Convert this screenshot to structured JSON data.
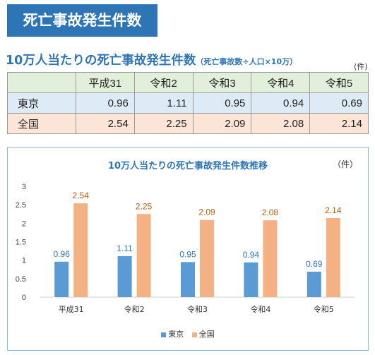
{
  "banner": "死亡事故発生件数",
  "subheading": "10万人当たりの死亡事故発生件数",
  "formula": "（死亡事故数÷人口×10万）",
  "table_unit": "(件)",
  "table": {
    "columns": [
      "平成31",
      "令和2",
      "令和3",
      "令和4",
      "令和5"
    ],
    "rows": [
      {
        "label": "東京",
        "values": [
          "0.96",
          "1.11",
          "0.95",
          "0.94",
          "0.69"
        ]
      },
      {
        "label": "全国",
        "values": [
          "2.54",
          "2.25",
          "2.09",
          "2.08",
          "2.14"
        ]
      }
    ]
  },
  "colors": {
    "tokyo": "#5b9bd5",
    "zenkoku": "#f4b183",
    "tokyo_label": "#2e75b6",
    "zenkoku_label": "#c55a11"
  },
  "chart_data": {
    "type": "bar",
    "title": "10万人当たりの死亡事故発生件数推移",
    "unit_label": "（件）",
    "categories": [
      "平成31",
      "令和2",
      "令和3",
      "令和4",
      "令和5"
    ],
    "series": [
      {
        "name": "東京",
        "values": [
          0.96,
          1.11,
          0.95,
          0.94,
          0.69
        ]
      },
      {
        "name": "全国",
        "values": [
          2.54,
          2.25,
          2.09,
          2.08,
          2.14
        ]
      }
    ],
    "ylim": [
      0,
      3
    ],
    "yticks": [
      "0",
      "0.5",
      "1",
      "1.5",
      "2",
      "2.5",
      "3"
    ],
    "grid": false,
    "legend_position": "bottom"
  }
}
